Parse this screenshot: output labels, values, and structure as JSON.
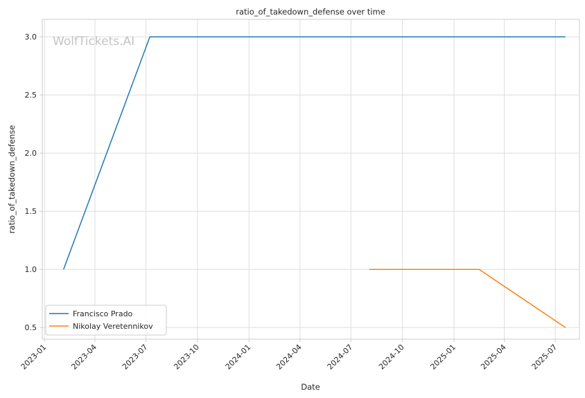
{
  "chart_data": {
    "type": "line",
    "title": "ratio_of_takedown_defense over time",
    "xlabel": "Date",
    "ylabel": "ratio_of_takedown_defense",
    "watermark": "WolfTickets.AI",
    "grid": true,
    "legend_position": "bottom-left",
    "x_type": "date",
    "xlim": [
      "2022-12-28",
      "2025-08-13"
    ],
    "ylim": [
      0.4,
      3.15
    ],
    "x_ticks": [
      "2023-01-01",
      "2023-04-01",
      "2023-07-01",
      "2023-10-01",
      "2024-01-01",
      "2024-04-01",
      "2024-07-01",
      "2024-10-01",
      "2025-01-01",
      "2025-04-01",
      "2025-07-01"
    ],
    "x_tick_labels": [
      "2023-01",
      "2023-04",
      "2023-07",
      "2023-10",
      "2024-01",
      "2024-04",
      "2024-07",
      "2024-10",
      "2025-01",
      "2025-04",
      "2025-07"
    ],
    "y_ticks": [
      0.5,
      1.0,
      1.5,
      2.0,
      2.5,
      3.0
    ],
    "y_tick_labels": [
      "0.5",
      "1.0",
      "1.5",
      "2.0",
      "2.5",
      "3.0"
    ],
    "series": [
      {
        "name": "Francisco Prado",
        "color": "#1f77b4",
        "points": [
          {
            "x": "2023-02-04",
            "y": 1.0
          },
          {
            "x": "2023-07-08",
            "y": 3.0
          },
          {
            "x": "2025-07-19",
            "y": 3.0
          }
        ]
      },
      {
        "name": "Nikolay Veretennikov",
        "color": "#ff7f0e",
        "points": [
          {
            "x": "2024-08-03",
            "y": 1.0
          },
          {
            "x": "2025-02-15",
            "y": 1.0
          },
          {
            "x": "2025-07-19",
            "y": 0.5
          }
        ]
      }
    ]
  }
}
